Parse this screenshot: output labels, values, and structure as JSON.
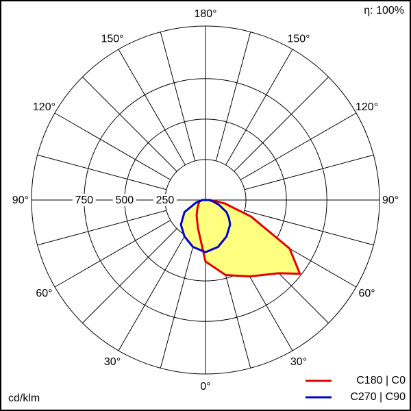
{
  "chart_data": {
    "type": "polar",
    "efficiency_label": "η: 100%",
    "unit_label": "cd/klm",
    "x": [
      -90,
      -75,
      -60,
      -45,
      -30,
      -15,
      0,
      15,
      30,
      45,
      52,
      60,
      70,
      80,
      90
    ],
    "series": [
      {
        "name": "C180 | C0",
        "color": "#e00000",
        "fill": "#ffff80",
        "values": [
          20,
          40,
          50,
          70,
          110,
          180,
          380,
          480,
          545,
          640,
          740,
          600,
          300,
          120,
          30
        ]
      },
      {
        "name": "C270 | C90",
        "color": "#0000c8",
        "fill": "#ffff80",
        "values": [
          20,
          60,
          150,
          215,
          260,
          300,
          322,
          300,
          260,
          215,
          185,
          150,
          90,
          45,
          20
        ]
      }
    ],
    "rlim": [
      0,
      1075
    ],
    "rticks": [
      250,
      500,
      750
    ],
    "angle_ticks": [
      {
        "value": 180,
        "label": "180°"
      },
      {
        "value": -150,
        "label": "150°"
      },
      {
        "value": 150,
        "label": "150°"
      },
      {
        "value": -120,
        "label": "120°"
      },
      {
        "value": 120,
        "label": "120°"
      },
      {
        "value": -90,
        "label": "90°"
      },
      {
        "value": 90,
        "label": "90°"
      },
      {
        "value": -60,
        "label": "60°"
      },
      {
        "value": 60,
        "label": "60°"
      },
      {
        "value": -30,
        "label": "30°"
      },
      {
        "value": 30,
        "label": "30°"
      },
      {
        "value": 0,
        "label": "0°"
      }
    ],
    "spoke_step": 15
  }
}
